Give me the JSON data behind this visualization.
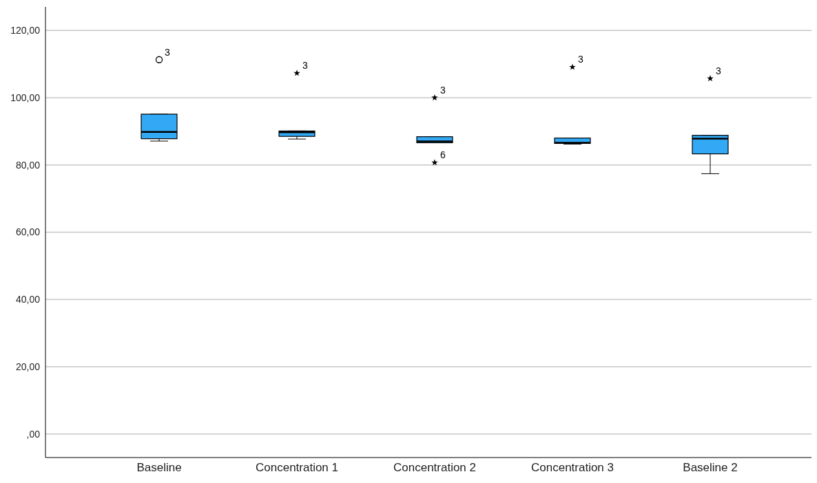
{
  "chart_data": {
    "type": "box",
    "categories": [
      "Baseline",
      "Concentration 1",
      "Concentration 2",
      "Concentration 3",
      "Baseline 2"
    ],
    "color": "#33a9f5",
    "boxes": [
      {
        "low": 87.1,
        "q1": 87.8,
        "median": 89.8,
        "q3": 95.1,
        "high": 95.1,
        "outliers": [
          111.3
        ]
      },
      {
        "low": 87.7,
        "q1": 88.5,
        "median": 89.7,
        "q3": 90.1,
        "high": 90.1,
        "outliers": [
          107.3
        ]
      },
      {
        "low": 86.6,
        "q1": 86.6,
        "median": 87.0,
        "q3": 88.4,
        "high": 88.4,
        "outliers": [
          100.0,
          80.7
        ]
      },
      {
        "low": 86.2,
        "q1": 86.4,
        "median": 86.6,
        "q3": 88.0,
        "high": 88.0,
        "outliers": [
          109.1
        ]
      },
      {
        "low": 77.4,
        "q1": 83.3,
        "median": 87.8,
        "q3": 88.8,
        "high": 88.8,
        "outliers": [
          105.7
        ]
      }
    ],
    "ylim": [
      -7,
      127
    ],
    "yticks": [
      {
        "value": 0,
        "label": ",00"
      },
      {
        "value": 20,
        "label": "20,00"
      },
      {
        "value": 40,
        "label": "40,00"
      },
      {
        "value": 60,
        "label": "60,00"
      },
      {
        "value": 80,
        "label": "80,00"
      },
      {
        "value": 100,
        "label": "100,00"
      },
      {
        "value": 120,
        "label": "120,00"
      }
    ],
    "grid": "y",
    "annotations": [
      "3",
      "3",
      "3",
      "6",
      "3",
      "3"
    ]
  }
}
